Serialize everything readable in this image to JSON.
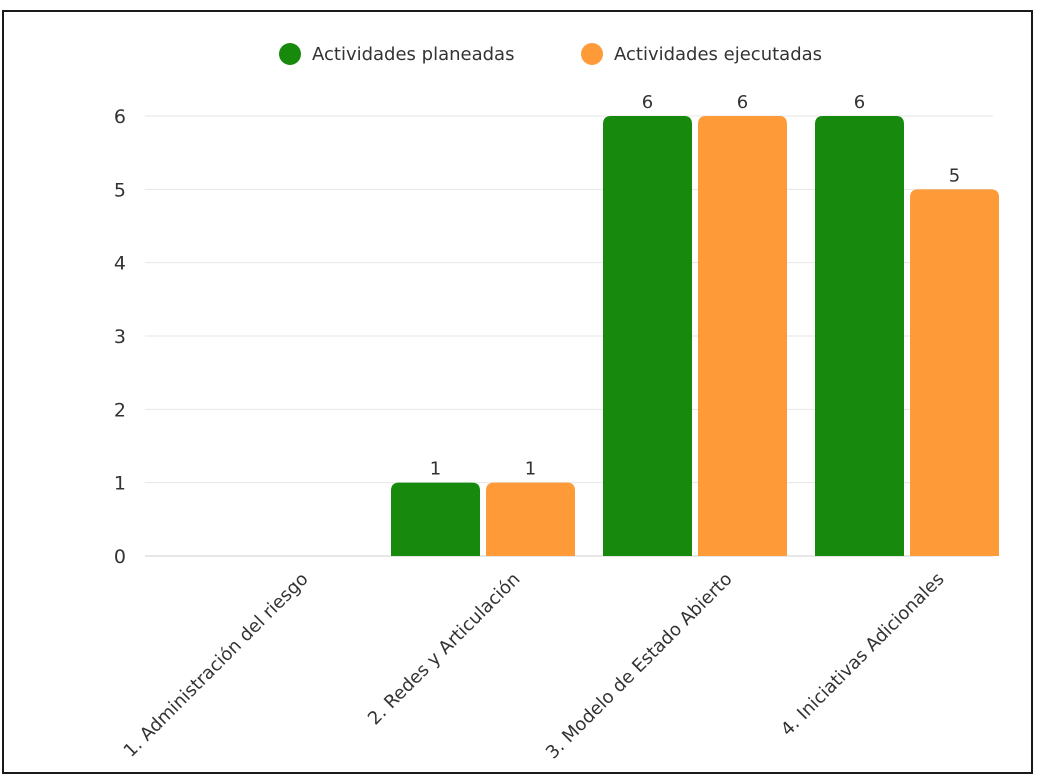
{
  "chart_data": {
    "type": "bar",
    "categories": [
      "1. Administración del riesgo",
      "2. Redes y Articulación",
      "3. Modelo de Estado Abierto",
      "4. Iniciativas Adicionales"
    ],
    "series": [
      {
        "name": "Actividades planeadas",
        "values": [
          0,
          1,
          6,
          6
        ],
        "color": "#178A0E"
      },
      {
        "name": "Actividades ejecutadas",
        "values": [
          0,
          1,
          6,
          5
        ],
        "color": "#FF9A38"
      }
    ],
    "ylim": [
      0,
      6
    ],
    "yticks": [
      0,
      1,
      2,
      3,
      4,
      5,
      6
    ],
    "grid": true,
    "legend": "top-center",
    "data_labels": true,
    "title": "",
    "xlabel": "",
    "ylabel": ""
  }
}
